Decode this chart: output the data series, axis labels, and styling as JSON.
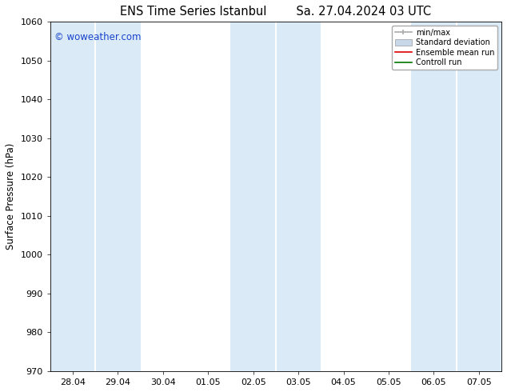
{
  "title_left": "ENS Time Series Istanbul",
  "title_right": "Sa. 27.04.2024 03 UTC",
  "ylabel": "Surface Pressure (hPa)",
  "ylim": [
    970,
    1060
  ],
  "yticks": [
    970,
    980,
    990,
    1000,
    1010,
    1020,
    1030,
    1040,
    1050,
    1060
  ],
  "xtick_labels": [
    "28.04",
    "29.04",
    "30.04",
    "01.05",
    "02.05",
    "03.05",
    "04.05",
    "05.05",
    "06.05",
    "07.05"
  ],
  "watermark": "© woweather.com",
  "watermark_color": "#1a44cc",
  "background_color": "#ffffff",
  "shaded_color": "#daeaf7",
  "legend_entries": [
    "min/max",
    "Standard deviation",
    "Ensemble mean run",
    "Controll run"
  ],
  "shaded_band_indices": [
    0,
    1,
    4,
    5,
    8,
    9
  ],
  "title_fontsize": 10.5,
  "label_fontsize": 8.5,
  "tick_fontsize": 8
}
